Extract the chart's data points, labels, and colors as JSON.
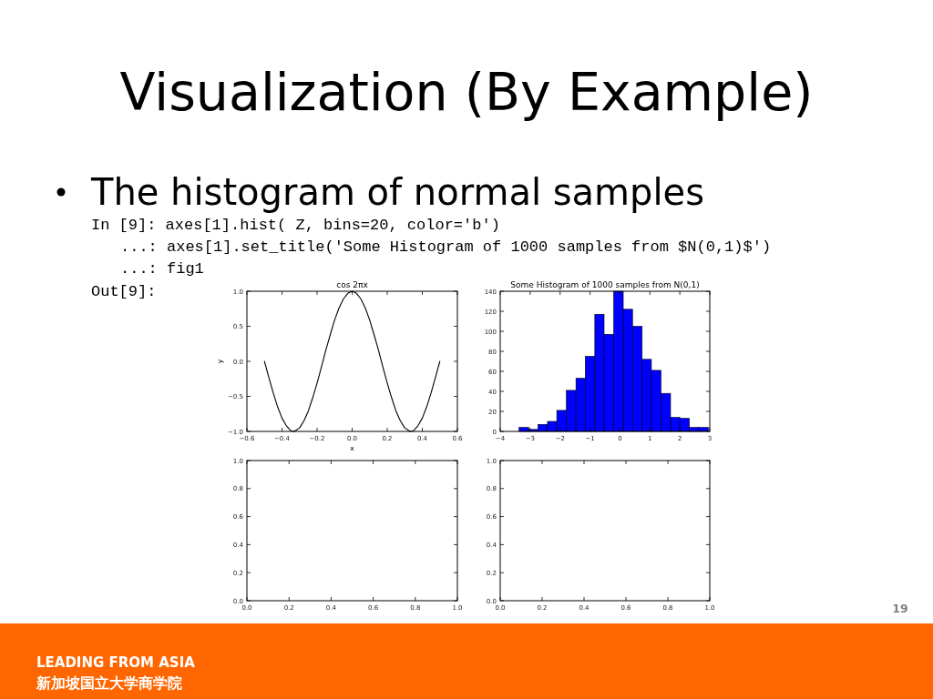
{
  "chart_data": [
    {
      "type": "other",
      "title": "Visualization (By Example)",
      "annotations": [
        "The histogram of normal samples",
        "In [9]: axes[1].hist( Z, bins=20, color='b')",
        "...: axes[1].set_title('Some Histogram of 1000 samples from $N(0,1)$')",
        "...: fig1",
        "Out[9]:",
        "19",
        "LEADING FROM ASIA",
        "新加坡国立大学商学院"
      ]
    },
    {
      "type": "line",
      "title": "cos 2πx",
      "xlabel": "x",
      "ylabel": "y",
      "color": "#000000",
      "x": [
        -0.5,
        -0.475,
        -0.45,
        -0.425,
        -0.4,
        -0.375,
        -0.35,
        -0.33,
        -0.3,
        -0.275,
        -0.25,
        -0.225,
        -0.2,
        -0.175,
        -0.15,
        -0.125,
        -0.1,
        -0.075,
        -0.05,
        -0.025,
        0,
        0.025,
        0.05,
        0.075,
        0.1,
        0.125,
        0.15,
        0.175,
        0.2,
        0.225,
        0.25,
        0.275,
        0.3,
        0.33,
        0.35,
        0.375,
        0.4,
        0.425,
        0.45,
        0.475,
        0.5
      ],
      "values": [
        0,
        -0.23,
        -0.45,
        -0.65,
        -0.81,
        -0.92,
        -0.99,
        -1,
        -0.95,
        -0.85,
        -0.71,
        -0.52,
        -0.31,
        -0.08,
        0.16,
        0.38,
        0.59,
        0.76,
        0.89,
        0.97,
        1,
        0.97,
        0.89,
        0.76,
        0.59,
        0.38,
        0.16,
        -0.08,
        -0.31,
        -0.52,
        -0.71,
        -0.85,
        -0.95,
        -1,
        -0.99,
        -0.92,
        -0.81,
        -0.65,
        -0.45,
        -0.23,
        0
      ],
      "xlim": [
        -0.6,
        0.6
      ],
      "xticks": [
        {
          "value": -0.6,
          "label": "−0.6"
        },
        {
          "value": -0.4,
          "label": "−0.4"
        },
        {
          "value": -0.2,
          "label": "−0.2"
        },
        {
          "value": 0,
          "label": "0.0"
        },
        0.2,
        0.4,
        0.6
      ],
      "ylim": [
        -1,
        1
      ],
      "yticks": [
        {
          "value": -1,
          "label": "−1.0"
        },
        {
          "value": -0.5,
          "label": "−0.5"
        },
        {
          "value": 0,
          "label": "0.0"
        },
        0.5,
        {
          "value": 1,
          "label": "1.0"
        }
      ]
    },
    {
      "type": "histogram",
      "title": "Some Histogram of 1000 samples from N(0,1)",
      "color": "#0000ff",
      "bins": [
        -3.37,
        -3.05,
        -2.74,
        -2.42,
        -2.11,
        -1.79,
        -1.47,
        -1.16,
        -0.84,
        -0.53,
        -0.21,
        0.11,
        0.42,
        0.74,
        1.05,
        1.37,
        1.69,
        2.0,
        2.32,
        2.63,
        2.95
      ],
      "values": [
        4,
        2,
        7,
        10,
        21,
        41,
        53,
        75,
        117,
        97,
        140,
        122,
        105,
        72,
        61,
        38,
        14,
        13,
        4,
        4
      ],
      "xlim": [
        -4,
        3
      ],
      "xticks": [
        {
          "value": -4,
          "label": "−4"
        },
        {
          "value": -3,
          "label": "−3"
        },
        {
          "value": -2,
          "label": "−2"
        },
        {
          "value": -1,
          "label": "−1"
        },
        0,
        1,
        2,
        3
      ],
      "ylim": [
        0,
        140
      ],
      "yticks": [
        0,
        20,
        40,
        60,
        80,
        100,
        120,
        140
      ]
    },
    {
      "type": "line",
      "xlim": [
        0,
        1
      ],
      "xticks": [
        {
          "value": 0,
          "label": "0.0"
        },
        0.2,
        0.4,
        0.6,
        0.8,
        {
          "value": 1,
          "label": "1.0"
        }
      ],
      "ylim": [
        0,
        1
      ],
      "yticks": [
        {
          "value": 0,
          "label": "0.0"
        },
        0.2,
        0.4,
        0.6,
        0.8,
        {
          "value": 1,
          "label": "1.0"
        }
      ]
    },
    {
      "type": "line",
      "xlim": [
        0,
        1
      ],
      "xticks": [
        {
          "value": 0,
          "label": "0.0"
        },
        0.2,
        0.4,
        0.6,
        0.8,
        {
          "value": 1,
          "label": "1.0"
        }
      ],
      "ylim": [
        0,
        1
      ],
      "yticks": [
        {
          "value": 0,
          "label": "0.0"
        },
        0.2,
        0.4,
        0.6,
        0.8,
        {
          "value": 1,
          "label": "1.0"
        }
      ]
    }
  ]
}
